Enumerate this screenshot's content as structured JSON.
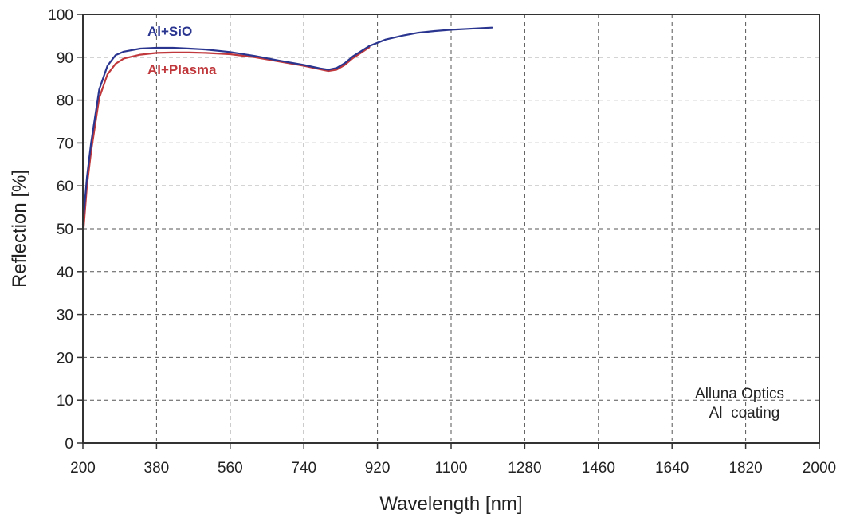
{
  "chart_data": {
    "type": "line",
    "title": "",
    "xlabel": "Wavelength [nm]",
    "ylabel": "Reflection [%]",
    "xlim": [
      200,
      2000
    ],
    "ylim": [
      0,
      100
    ],
    "xticks": [
      200,
      380,
      560,
      740,
      920,
      1100,
      1280,
      1460,
      1640,
      1820,
      2000
    ],
    "yticks": [
      0,
      10,
      20,
      30,
      40,
      50,
      60,
      70,
      80,
      90,
      100
    ],
    "grid": true,
    "legend": "inline labels",
    "annotation": [
      "Alluna Optics",
      "Al  coating"
    ],
    "series": [
      {
        "name": "Al+SiO",
        "color": "#2a3590",
        "x": [
          200,
          210,
          220,
          240,
          260,
          280,
          300,
          340,
          380,
          420,
          460,
          500,
          560,
          620,
          680,
          740,
          780,
          800,
          820,
          840,
          860,
          900,
          940,
          980,
          1020,
          1060,
          1100,
          1140,
          1180,
          1200
        ],
        "y": [
          51,
          62,
          70,
          82.5,
          88,
          90.5,
          91.3,
          92,
          92.2,
          92.2,
          92,
          91.8,
          91.2,
          90.3,
          89.2,
          88.2,
          87.4,
          87.1,
          87.5,
          88.6,
          90.2,
          92.6,
          94.1,
          95,
          95.7,
          96.1,
          96.4,
          96.6,
          96.8,
          96.9
        ]
      },
      {
        "name": "Al+Plasma",
        "color": "#c0383c",
        "x": [
          200,
          210,
          220,
          240,
          260,
          280,
          300,
          340,
          380,
          420,
          460,
          500,
          560,
          620,
          680,
          740,
          780,
          800,
          820,
          840,
          860,
          900
        ],
        "y": [
          48,
          60,
          68,
          80.5,
          86,
          88.5,
          89.7,
          90.6,
          91,
          91.1,
          91.1,
          91,
          90.7,
          90,
          89,
          88,
          87.2,
          86.8,
          87.1,
          88.2,
          89.8,
          92.3
        ]
      }
    ]
  }
}
